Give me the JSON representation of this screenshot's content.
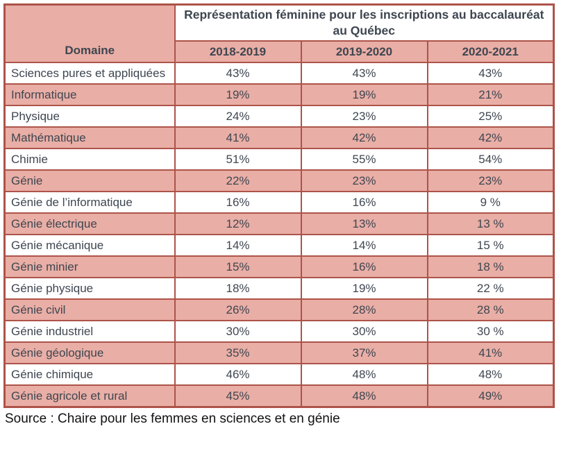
{
  "chart_data": {
    "type": "table",
    "title": "Représentation féminine pour les inscriptions au baccalauréat au Québec",
    "row_header": "Domaine",
    "columns": [
      "2018-2019",
      "2019-2020",
      "2020-2021"
    ],
    "rows": [
      {
        "domain": "Sciences pures et appliquées",
        "values": [
          "43%",
          "43%",
          "43%"
        ]
      },
      {
        "domain": "Informatique",
        "values": [
          "19%",
          "19%",
          "21%"
        ]
      },
      {
        "domain": "Physique",
        "values": [
          "24%",
          "23%",
          "25%"
        ]
      },
      {
        "domain": "Mathématique",
        "values": [
          "41%",
          "42%",
          "42%"
        ]
      },
      {
        "domain": "Chimie",
        "values": [
          "51%",
          "55%",
          "54%"
        ]
      },
      {
        "domain": "Génie",
        "values": [
          "22%",
          "23%",
          "23%"
        ]
      },
      {
        "domain": "Génie de l’informatique",
        "values": [
          "16%",
          "16%",
          "9 %"
        ]
      },
      {
        "domain": "Génie électrique",
        "values": [
          "12%",
          "13%",
          "13 %"
        ]
      },
      {
        "domain": "Génie mécanique",
        "values": [
          "14%",
          "14%",
          "15 %"
        ]
      },
      {
        "domain": "Génie minier",
        "values": [
          "15%",
          "16%",
          "18 %"
        ]
      },
      {
        "domain": "Génie physique",
        "values": [
          "18%",
          "19%",
          "22 %"
        ]
      },
      {
        "domain": "Génie civil",
        "values": [
          "26%",
          "28%",
          "28 %"
        ]
      },
      {
        "domain": "Génie industriel",
        "values": [
          "30%",
          "30%",
          "30 %"
        ]
      },
      {
        "domain": "Génie géologique",
        "values": [
          "35%",
          "37%",
          "41%"
        ]
      },
      {
        "domain": "Génie chimique",
        "values": [
          "46%",
          "48%",
          "48%"
        ]
      },
      {
        "domain": "Génie agricole et rural",
        "values": [
          "45%",
          "48%",
          "49%"
        ]
      }
    ],
    "source": "Source : Chaire pour les femmes en sciences et en génie",
    "layout": {
      "banded_rows": true,
      "band_start_index": 1
    }
  },
  "colors": {
    "band_pink": "#E9AEA6",
    "border_red": "#AD5349",
    "header_text": "#3E4650",
    "source_text": "#111111",
    "cell_white": "#FFFFFF"
  }
}
